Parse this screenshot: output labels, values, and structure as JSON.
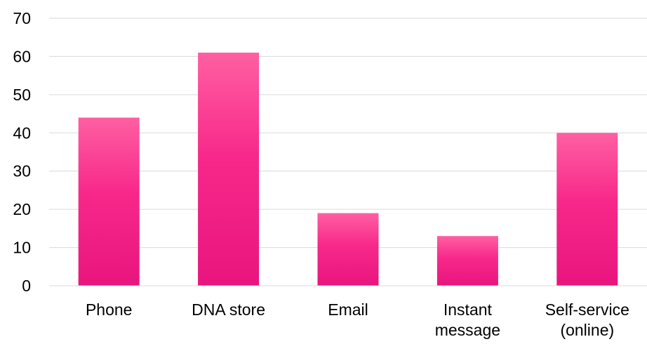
{
  "chart_data": {
    "type": "bar",
    "categories": [
      [
        "Phone"
      ],
      [
        "DNA store"
      ],
      [
        "Email"
      ],
      [
        "Instant",
        "message"
      ],
      [
        "Self-service",
        "(online)"
      ]
    ],
    "values": [
      44,
      61,
      19,
      13,
      40
    ],
    "title": "",
    "xlabel": "",
    "ylabel": "",
    "ylim": [
      0,
      70
    ],
    "yticks": [
      0,
      10,
      20,
      30,
      40,
      50,
      60,
      70
    ],
    "grid": true,
    "legend": "none",
    "bar_color_top": "#ff5fa2",
    "bar_color_bottom": "#e8157e"
  }
}
